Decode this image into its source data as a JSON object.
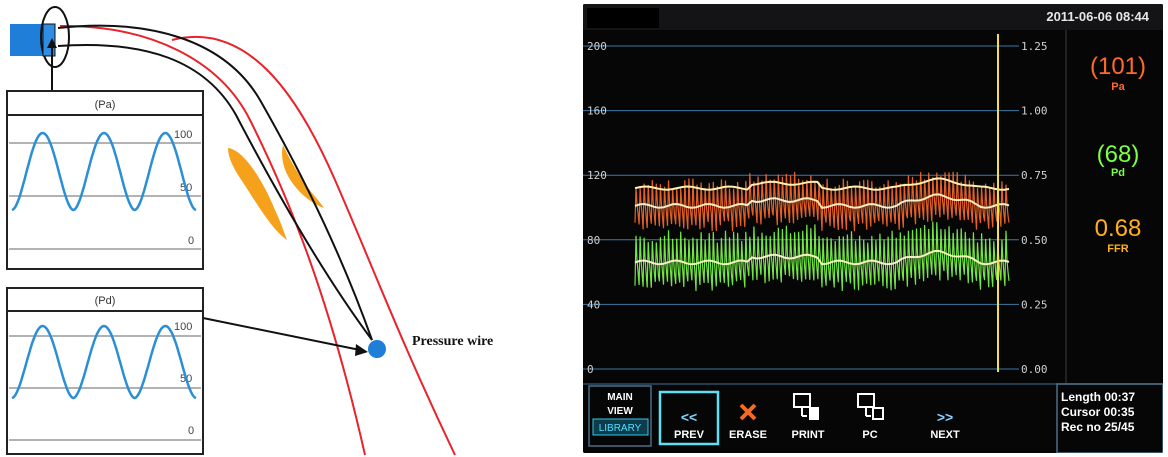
{
  "diagram": {
    "pa_box_title": "(Pa)",
    "pd_box_title": "(Pd)",
    "pa_ticks": [
      "100",
      "50",
      "0"
    ],
    "pd_ticks": [
      "100",
      "50",
      "0"
    ],
    "pressure_wire_label": "Pressure wire"
  },
  "monitor": {
    "datetime": "2011-06-06 08:44",
    "left_axis_ticks": [
      "200",
      "160",
      "120",
      "80",
      "40",
      "0"
    ],
    "right_axis_ticks": [
      "1.25",
      "1.00",
      "0.75",
      "0.50",
      "0.25",
      "0.00"
    ],
    "pa_value": "(101)",
    "pa_label": "Pa",
    "pd_value": "(68)",
    "pd_label": "Pd",
    "ffr_value": "0.68",
    "ffr_label": "FFR",
    "mode": {
      "line1": "MAIN",
      "line2": "VIEW",
      "library": "LIBRARY"
    },
    "buttons": {
      "prev_icon": "<<",
      "prev": "PREV",
      "erase": "ERASE",
      "print": "PRINT",
      "pc": "PC",
      "next_icon": ">>",
      "next": "NEXT"
    },
    "info": {
      "length": "Length 00:37",
      "cursor": "Cursor 00:35",
      "rec": "Rec no 25/45"
    },
    "colors": {
      "pa": "#ff6a2a",
      "pd": "#7dff4a",
      "ffr": "#ffb01e",
      "axis": "#6ab8ff",
      "cursor": "#f2e04a"
    }
  }
}
